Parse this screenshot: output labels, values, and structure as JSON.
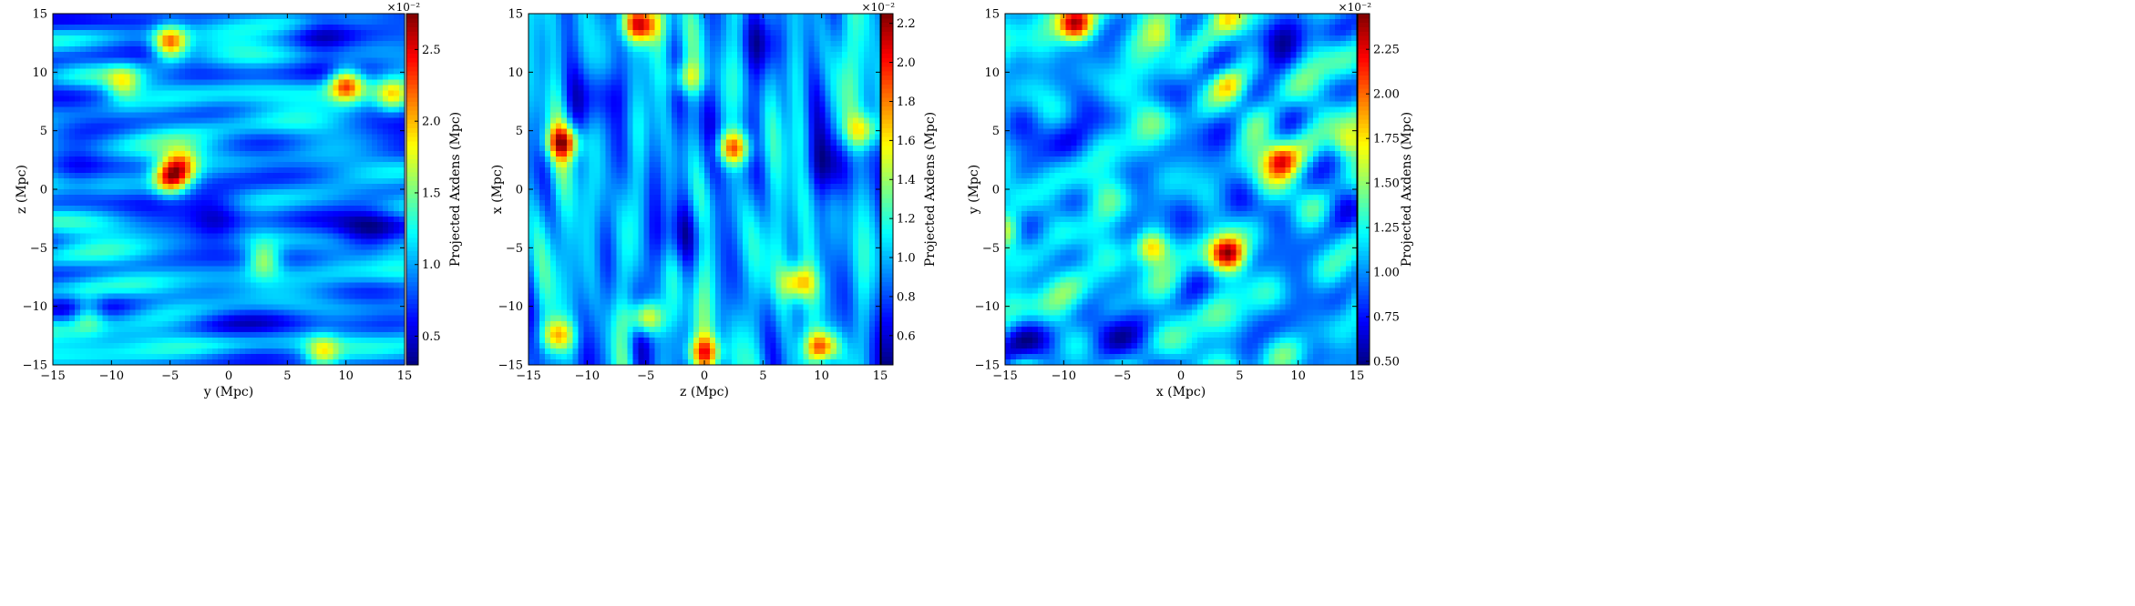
{
  "figure": {
    "panels": 3
  },
  "colormap": [
    "#00007f",
    "#0000ff",
    "#007fff",
    "#00ffff",
    "#7fff7f",
    "#ffff00",
    "#ff7f00",
    "#ff0000",
    "#7f0000"
  ],
  "chart_data": [
    {
      "type": "heatmap",
      "xlabel": "y  (Mpc)",
      "ylabel": "z  (Mpc)",
      "xlim": [
        -15,
        15
      ],
      "ylim": [
        -15,
        15
      ],
      "xticks": [
        -15,
        -10,
        -5,
        0,
        5,
        10,
        15
      ],
      "yticks": [
        -15,
        -10,
        -5,
        0,
        5,
        10,
        15
      ],
      "xtick_labels": [
        "−15",
        "−10",
        "−5",
        "0",
        "5",
        "10",
        "15"
      ],
      "ytick_labels": [
        "−15",
        "−10",
        "−5",
        "0",
        "5",
        "10",
        "15"
      ],
      "colorbar": {
        "label": "Projected Axdens  (Mpc)",
        "multiplier": "×10⁻²",
        "range": [
          0.3,
          2.75
        ],
        "ticks": [
          0.5,
          1.0,
          1.5,
          2.0,
          2.5
        ],
        "tick_labels": [
          "0.5",
          "1.0",
          "1.5",
          "2.0",
          "2.5"
        ]
      },
      "texture": {
        "seed": 11,
        "stretch_x": 2.4,
        "stretch_y": 0.7
      },
      "hotspots": [
        {
          "x": -5.0,
          "y": 12.5,
          "value": 1.0
        },
        {
          "x": 10.0,
          "y": 9.0,
          "value": 0.95
        },
        {
          "x": 14.0,
          "y": 8.0,
          "value": 0.6
        },
        {
          "x": -5.0,
          "y": 1.0,
          "value": 1.0
        },
        {
          "x": -4.0,
          "y": 2.0,
          "value": 0.7
        },
        {
          "x": 3.0,
          "y": -6.0,
          "value": 0.6
        },
        {
          "x": -9.0,
          "y": 9.0,
          "value": 0.5
        },
        {
          "x": -12.0,
          "y": -10.5,
          "value": 0.5
        },
        {
          "x": 8.0,
          "y": -14.0,
          "value": 0.55
        }
      ],
      "coldspots": [
        {
          "x": -1.0,
          "y": -2.5,
          "value": 0.7
        },
        {
          "x": 12.0,
          "y": -4.0,
          "value": 0.6
        },
        {
          "x": -13.0,
          "y": 2.0,
          "value": 0.5
        },
        {
          "x": 8.0,
          "y": 13.5,
          "value": 0.5
        }
      ]
    },
    {
      "type": "heatmap",
      "xlabel": "z  (Mpc)",
      "ylabel": "x  (Mpc)",
      "xlim": [
        -15,
        15
      ],
      "ylim": [
        -15,
        15
      ],
      "xticks": [
        -15,
        -10,
        -5,
        0,
        5,
        10,
        15
      ],
      "yticks": [
        -15,
        -10,
        -5,
        0,
        5,
        10,
        15
      ],
      "xtick_labels": [
        "−15",
        "−10",
        "−5",
        "0",
        "5",
        "10",
        "15"
      ],
      "ytick_labels": [
        "−15",
        "−10",
        "−5",
        "0",
        "5",
        "10",
        "15"
      ],
      "colorbar": {
        "label": "Projected Axdens  (Mpc)",
        "multiplier": "×10⁻²",
        "range": [
          0.45,
          2.25
        ],
        "ticks": [
          0.6,
          0.8,
          1.0,
          1.2,
          1.4,
          1.6,
          1.8,
          2.0,
          2.2
        ],
        "tick_labels": [
          "0.6",
          "0.8",
          "1.0",
          "1.2",
          "1.4",
          "1.6",
          "1.8",
          "2.0",
          "2.2"
        ]
      },
      "texture": {
        "seed": 23,
        "stretch_x": 0.55,
        "stretch_y": 2.6
      },
      "hotspots": [
        {
          "x": -5.5,
          "y": 14.0,
          "value": 1.0
        },
        {
          "x": -12.0,
          "y": 4.0,
          "value": 0.9
        },
        {
          "x": 2.5,
          "y": 3.5,
          "value": 0.9
        },
        {
          "x": 10.0,
          "y": -13.5,
          "value": 1.0
        },
        {
          "x": 0.0,
          "y": -14.0,
          "value": 0.8
        },
        {
          "x": -5.0,
          "y": -11.0,
          "value": 0.8
        },
        {
          "x": -12.5,
          "y": -12.5,
          "value": 0.7
        },
        {
          "x": 8.0,
          "y": -8.0,
          "value": 0.7
        },
        {
          "x": -1.5,
          "y": 9.5,
          "value": 0.5
        },
        {
          "x": 13.5,
          "y": 5.0,
          "value": 0.55
        }
      ],
      "coldspots": [
        {
          "x": -9.0,
          "y": 8.0,
          "value": 0.6
        },
        {
          "x": 11.0,
          "y": 2.0,
          "value": 0.6
        },
        {
          "x": -2.0,
          "y": -4.0,
          "value": 0.5
        },
        {
          "x": 5.0,
          "y": 12.5,
          "value": 0.5
        }
      ]
    },
    {
      "type": "heatmap",
      "xlabel": "x  (Mpc)",
      "ylabel": "y  (Mpc)",
      "xlim": [
        -15,
        15
      ],
      "ylim": [
        -15,
        15
      ],
      "xticks": [
        -15,
        -10,
        -5,
        0,
        5,
        10,
        15
      ],
      "yticks": [
        -15,
        -10,
        -5,
        0,
        5,
        10,
        15
      ],
      "xtick_labels": [
        "−15",
        "−10",
        "−5",
        "0",
        "5",
        "10",
        "15"
      ],
      "ytick_labels": [
        "−15",
        "−10",
        "−5",
        "0",
        "5",
        "10",
        "15"
      ],
      "colorbar": {
        "label": "Projected Axdens  (Mpc)",
        "multiplier": "×10⁻²",
        "range": [
          0.48,
          2.45
        ],
        "ticks": [
          0.5,
          0.75,
          1.0,
          1.25,
          1.5,
          1.75,
          2.0,
          2.25
        ],
        "tick_labels": [
          "0.50",
          "0.75",
          "1.00",
          "1.25",
          "1.50",
          "1.75",
          "2.00",
          "2.25"
        ]
      },
      "texture": {
        "seed": 37,
        "stretch_x": 1.0,
        "stretch_y": 1.0
      },
      "hotspots": [
        {
          "x": 4.0,
          "y": -5.5,
          "value": 1.0
        },
        {
          "x": -9.0,
          "y": 14.0,
          "value": 0.95
        },
        {
          "x": -2.5,
          "y": -5.0,
          "value": 0.8
        },
        {
          "x": 8.5,
          "y": 2.5,
          "value": 0.7
        },
        {
          "x": 4.0,
          "y": 9.0,
          "value": 0.6
        },
        {
          "x": 4.0,
          "y": 14.5,
          "value": 0.55
        },
        {
          "x": -1.5,
          "y": 13.0,
          "value": 0.5
        },
        {
          "x": -15.0,
          "y": -3.5,
          "value": 0.5
        },
        {
          "x": 14.0,
          "y": 4.0,
          "value": 0.45
        }
      ],
      "coldspots": [
        {
          "x": 0.0,
          "y": 0.5,
          "value": 0.8
        },
        {
          "x": -13.0,
          "y": -13.0,
          "value": 0.7
        },
        {
          "x": -6.0,
          "y": -13.0,
          "value": 0.6
        },
        {
          "x": 9.0,
          "y": 13.0,
          "value": 0.6
        },
        {
          "x": 12.0,
          "y": -12.0,
          "value": 0.5
        },
        {
          "x": -11.0,
          "y": 5.0,
          "value": 0.5
        }
      ]
    }
  ]
}
